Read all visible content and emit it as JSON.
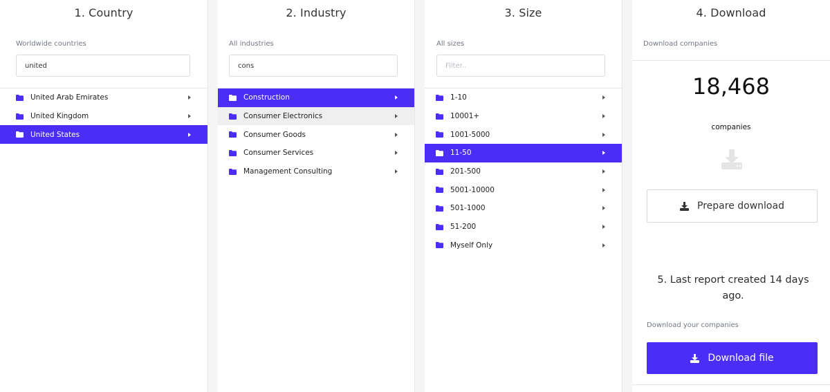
{
  "colors": {
    "accent": "#4a2ef5",
    "hover_row": "#efeff0",
    "muted_text": "#6f7784"
  },
  "country": {
    "title": "1. Country",
    "scope_label": "Worldwide countries",
    "filter_value": "united",
    "filter_placeholder": "",
    "items": [
      {
        "label": "United Arab Emirates",
        "state": "normal"
      },
      {
        "label": "United Kingdom",
        "state": "normal"
      },
      {
        "label": "United States",
        "state": "selected"
      }
    ]
  },
  "industry": {
    "title": "2. Industry",
    "scope_label": "All industries",
    "filter_value": "cons",
    "filter_placeholder": "",
    "items": [
      {
        "label": "Construction",
        "state": "selected"
      },
      {
        "label": "Consumer Electronics",
        "state": "hover"
      },
      {
        "label": "Consumer Goods",
        "state": "normal"
      },
      {
        "label": "Consumer Services",
        "state": "normal"
      },
      {
        "label": "Management Consulting",
        "state": "normal"
      }
    ]
  },
  "size": {
    "title": "3. Size",
    "scope_label": "All sizes",
    "filter_value": "",
    "filter_placeholder": "Filter..",
    "items": [
      {
        "label": "1-10",
        "state": "normal"
      },
      {
        "label": "10001+",
        "state": "normal"
      },
      {
        "label": "1001-5000",
        "state": "normal"
      },
      {
        "label": "11-50",
        "state": "selected"
      },
      {
        "label": "201-500",
        "state": "normal"
      },
      {
        "label": "5001-10000",
        "state": "normal"
      },
      {
        "label": "501-1000",
        "state": "normal"
      },
      {
        "label": "51-200",
        "state": "normal"
      },
      {
        "label": "Myself Only",
        "state": "normal"
      }
    ]
  },
  "download": {
    "title": "4. Download",
    "scope_label": "Download companies",
    "count": "18,468",
    "count_unit": "companies",
    "prepare_label": "Prepare download",
    "last_report_title": "5. Last report created 14 days ago.",
    "your_companies_label": "Download your companies",
    "download_file_label": "Download file",
    "icons": [
      "download-tray-icon",
      "download-icon"
    ]
  }
}
